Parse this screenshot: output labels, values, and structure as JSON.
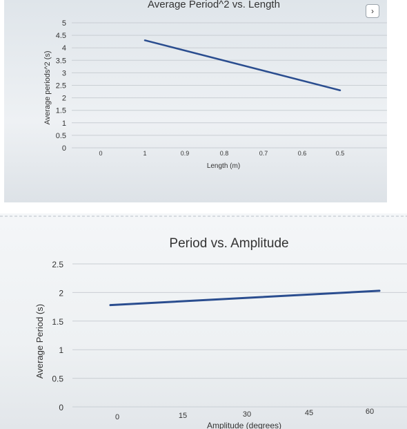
{
  "colors": {
    "line": "#2a4d8f",
    "grid": "#c9ced3",
    "text": "#333333",
    "photo_edge": "#b9c0c7"
  },
  "icons": {
    "expand": "chevron-right-icon"
  },
  "chart_data": [
    {
      "type": "line",
      "title": "Average Period^2 vs. Length",
      "xlabel": "Length (m)",
      "ylabel": "Average periods^2 (s)",
      "x_categories": [
        "0",
        "1",
        "0.9",
        "0.8",
        "0.7",
        "0.6",
        "0.5"
      ],
      "yticks": [
        "0",
        "0.5",
        "1",
        "1.5",
        "2",
        "2.5",
        "3",
        "3.5",
        "4",
        "4.5",
        "5"
      ],
      "ylim": [
        0,
        5
      ],
      "grid": true,
      "series": [
        {
          "x": [
            1,
            0.5
          ],
          "y": [
            4.3,
            2.3
          ]
        }
      ]
    },
    {
      "type": "line",
      "title": "Period vs. Amplitude",
      "xlabel": "Amplitude (degrees)",
      "ylabel": "Average Period (s)",
      "xticks": [
        "0",
        "15",
        "30",
        "45",
        "60"
      ],
      "yticks": [
        "0",
        "0.5",
        "1",
        "1.5",
        "2",
        "2.5"
      ],
      "ylim": [
        0,
        2.5
      ],
      "grid": true,
      "series": [
        {
          "x": [
            0,
            60
          ],
          "y": [
            1.78,
            2.03
          ]
        }
      ]
    }
  ]
}
